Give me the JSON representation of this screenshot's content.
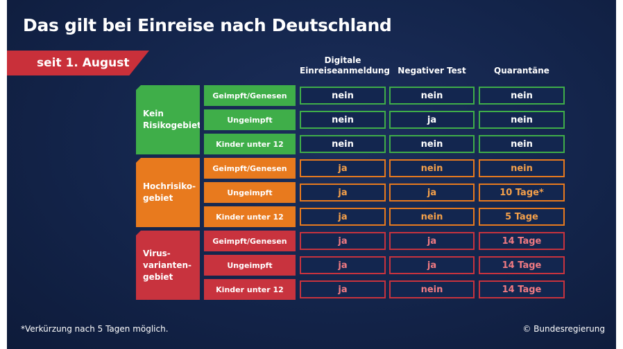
{
  "title": "Das gilt bei Einreise nach Deutschland",
  "banner": "seit 1. August",
  "columns": {
    "digital": "Digitale\nEinreiseanmeldung",
    "test": "Negativer Test",
    "quarantine": "Quarantäne"
  },
  "groups": [
    {
      "label": "Kein\nRisikogebiet",
      "color": "#3fae49",
      "rows": [
        {
          "sub": "Geimpft/Genesen",
          "digital": "nein",
          "test": "nein",
          "quarantine": "nein"
        },
        {
          "sub": "Ungeimpft",
          "digital": "nein",
          "test": "ja",
          "quarantine": "nein"
        },
        {
          "sub": "Kinder unter 12",
          "digital": "nein",
          "test": "nein",
          "quarantine": "nein"
        }
      ]
    },
    {
      "label": "Hochrisiko-\ngebiet",
      "color": "#e87a1e",
      "rows": [
        {
          "sub": "Geimpft/Genesen",
          "digital": "ja",
          "test": "nein",
          "quarantine": "nein"
        },
        {
          "sub": "Ungeimpft",
          "digital": "ja",
          "test": "ja",
          "quarantine": "10 Tage*"
        },
        {
          "sub": "Kinder unter 12",
          "digital": "ja",
          "test": "nein",
          "quarantine": "5 Tage"
        }
      ]
    },
    {
      "label": "Virus-\nvarianten-\ngebiet",
      "color": "#c8333e",
      "rows": [
        {
          "sub": "Geimpft/Genesen",
          "digital": "ja",
          "test": "ja",
          "quarantine": "14 Tage"
        },
        {
          "sub": "Ungeimpft",
          "digital": "ja",
          "test": "ja",
          "quarantine": "14 Tage"
        },
        {
          "sub": "Kinder unter 12",
          "digital": "ja",
          "test": "nein",
          "quarantine": "14 Tage"
        }
      ]
    }
  ],
  "footnote": "*Verkürzung nach 5 Tagen möglich.",
  "credit": "© Bundesregierung"
}
